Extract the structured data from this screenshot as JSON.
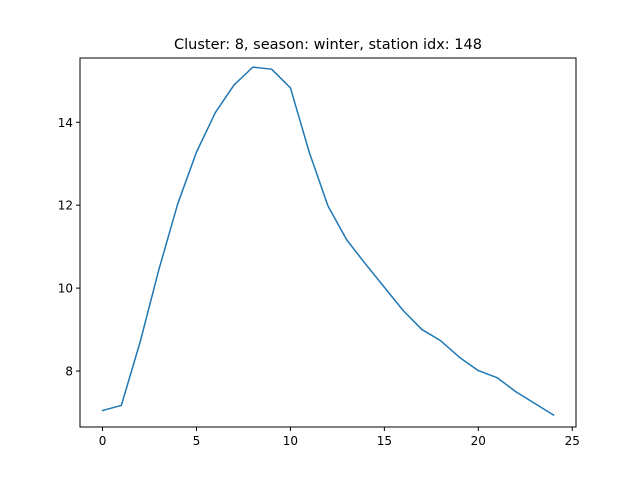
{
  "chart_data": {
    "type": "line",
    "title": "Cluster: 8, season: winter, station idx: 148",
    "xlabel": "",
    "ylabel": "",
    "xlim": [
      -1.2,
      25.2
    ],
    "ylim": [
      6.65,
      15.55
    ],
    "xticks": [
      0,
      5,
      10,
      15,
      20,
      25
    ],
    "yticks": [
      8,
      10,
      12,
      14
    ],
    "grid": false,
    "legend": null,
    "series": [
      {
        "color": "#1f77b4",
        "x": [
          0,
          1,
          2,
          3,
          4,
          5,
          6,
          7,
          8,
          9,
          10,
          11,
          12,
          13,
          14,
          15,
          16,
          17,
          18,
          19,
          20,
          21,
          22,
          23,
          24
        ],
        "y": [
          7.05,
          7.17,
          8.7,
          10.45,
          12.03,
          13.28,
          14.23,
          14.9,
          15.33,
          15.28,
          14.83,
          13.28,
          11.98,
          11.16,
          10.58,
          10.02,
          9.46,
          9.0,
          8.73,
          8.33,
          8.01,
          7.84,
          7.5,
          7.22,
          6.94
        ]
      }
    ]
  }
}
